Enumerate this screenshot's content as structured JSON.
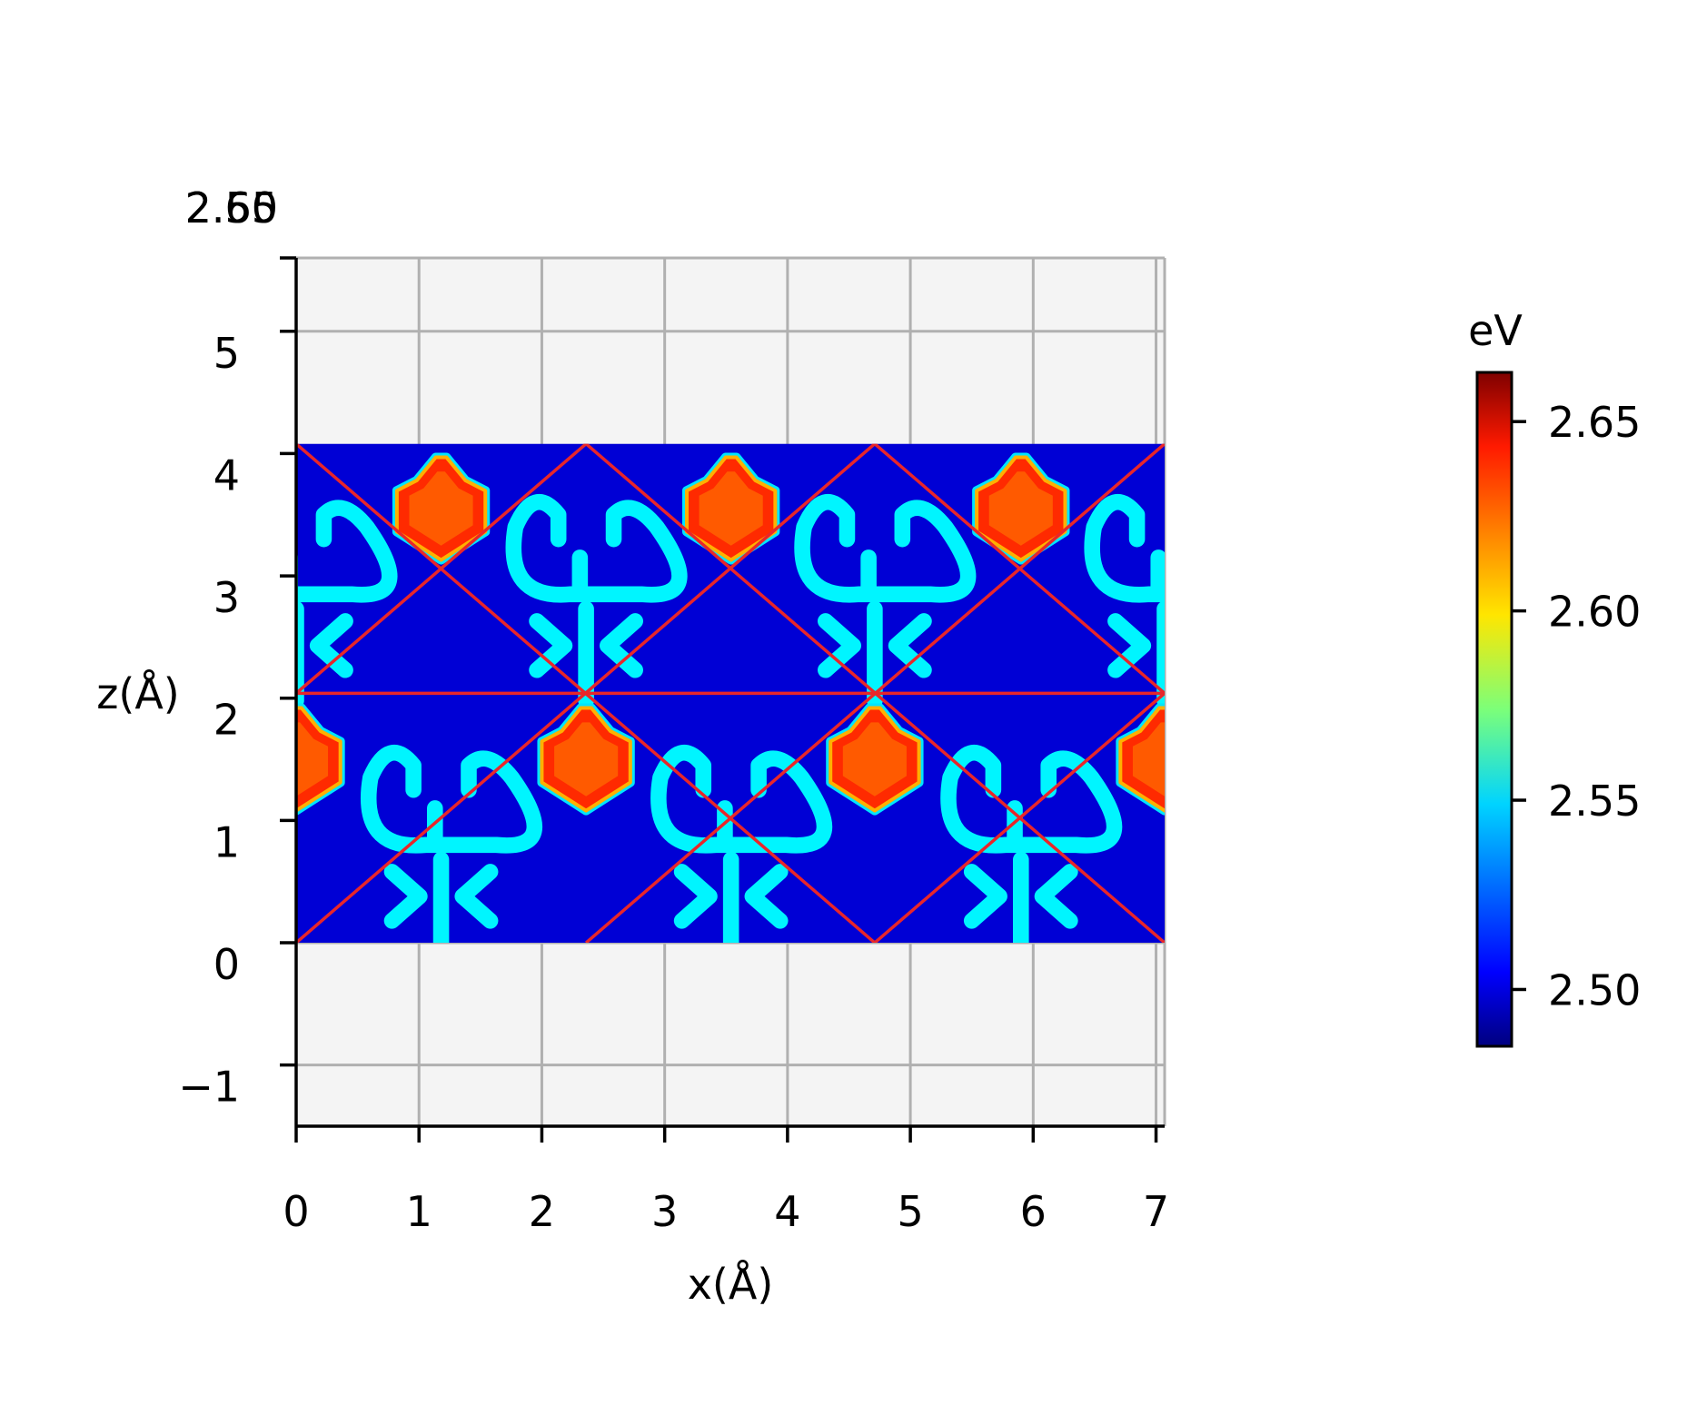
{
  "chart_data": {
    "type": "heatmap",
    "title": "",
    "xlabel": "x(Å)",
    "ylabel": "z(Å)",
    "xlim": [
      0,
      7.07
    ],
    "ylim": [
      -1.5,
      5.6
    ],
    "grid": true,
    "x_ticks": [
      0,
      1,
      2,
      3,
      4,
      5,
      6,
      7
    ],
    "y_ticks": [
      -1,
      0,
      1,
      2,
      3,
      4,
      5
    ],
    "x_tick_labels": [
      "0",
      "1",
      "2",
      "3",
      "4",
      "5",
      "6",
      "7"
    ],
    "y_tick_labels": [
      "−1",
      "0",
      "1",
      "2",
      "3",
      "4",
      "5"
    ],
    "overlapping_top_labels": [
      "2.60",
      "2.55"
    ],
    "data_extent": {
      "x": [
        0,
        7.07
      ],
      "z": [
        0,
        4.08
      ]
    },
    "colormap": "jet",
    "colorbar": {
      "label": "eV",
      "range": [
        2.485,
        2.663
      ],
      "ticks": [
        2.5,
        2.55,
        2.6,
        2.65
      ],
      "tick_labels": [
        "2.50",
        "2.55",
        "2.60",
        "2.65"
      ]
    },
    "background_value_eV": 2.5,
    "overlay_lines": {
      "color": "#e8262a",
      "segments": [
        [
          [
            0,
            4.08
          ],
          [
            4.71,
            0
          ]
        ],
        [
          [
            2.36,
            4.08
          ],
          [
            7.07,
            0
          ]
        ],
        [
          [
            4.71,
            4.08
          ],
          [
            7.07,
            2.04
          ]
        ],
        [
          [
            2.36,
            4.08
          ],
          [
            0,
            2.04
          ]
        ],
        [
          [
            4.71,
            4.08
          ],
          [
            0,
            0
          ]
        ],
        [
          [
            7.07,
            4.08
          ],
          [
            2.36,
            0
          ]
        ],
        [
          [
            7.07,
            2.04
          ],
          [
            4.71,
            0
          ]
        ],
        [
          [
            0,
            2.04
          ],
          [
            7.07,
            2.04
          ]
        ]
      ]
    },
    "high_features": {
      "value_eV": 2.625,
      "centers": [
        [
          1.18,
          3.55
        ],
        [
          3.54,
          3.55
        ],
        [
          5.9,
          3.55
        ],
        [
          2.36,
          1.5
        ],
        [
          4.71,
          1.5
        ],
        [
          0,
          1.5
        ],
        [
          7.07,
          1.5
        ]
      ]
    },
    "mid_features": {
      "value_eV": 2.55,
      "centers": [
        [
          0,
          2.85
        ],
        [
          2.36,
          2.85
        ],
        [
          4.71,
          2.85
        ],
        [
          7.07,
          2.85
        ],
        [
          1.18,
          0.8
        ],
        [
          3.54,
          0.8
        ],
        [
          5.9,
          0.8
        ]
      ]
    }
  }
}
